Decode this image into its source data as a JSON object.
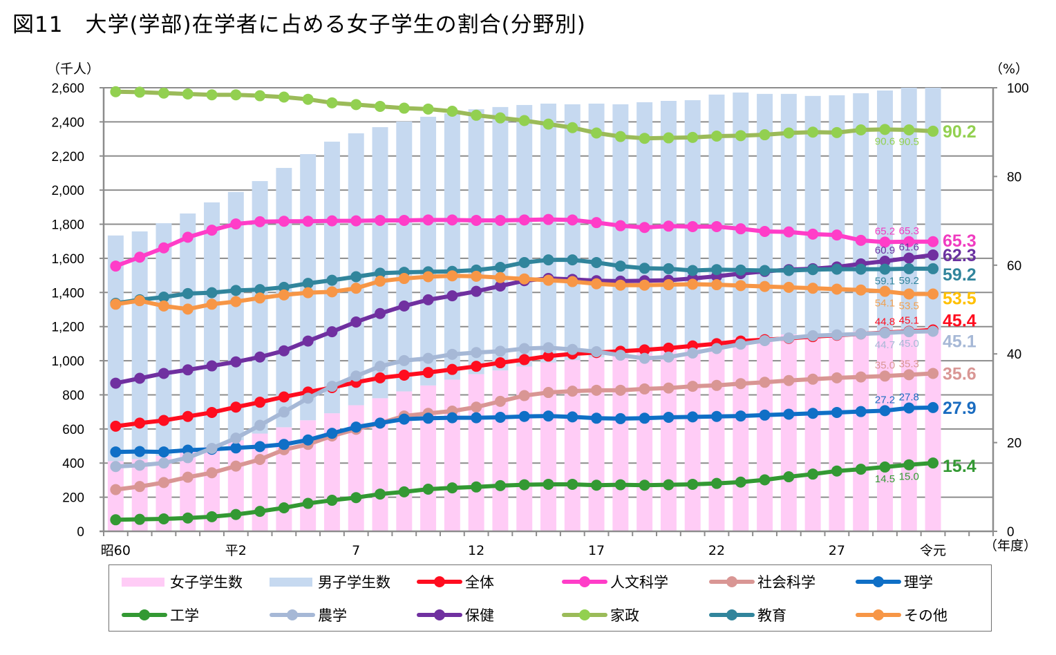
{
  "title": "図11　大学(学部)在学者に占める女子学生の割合(分野別)",
  "chart_data": {
    "type": "bar+line",
    "title": "図11　大学(学部)在学者に占める女子学生の割合(分野別)",
    "left_axis": {
      "unit_label": "（千人）",
      "range": [
        0,
        2600
      ],
      "ticks": [
        "0",
        "200",
        "400",
        "600",
        "800",
        "1,000",
        "1,200",
        "1,400",
        "1,600",
        "1,800",
        "2,000",
        "2,200",
        "2,400",
        "2,600"
      ]
    },
    "right_axis": {
      "unit_label": "（%）",
      "range": [
        0,
        100
      ],
      "ticks": [
        "0",
        "20",
        "40",
        "60",
        "80",
        "100"
      ]
    },
    "x_axis": {
      "unit_label": "（年度）",
      "tick_labels": [
        {
          "index": 0,
          "label": "昭60"
        },
        {
          "index": 5,
          "label": "平2"
        },
        {
          "index": 10,
          "label": "7"
        },
        {
          "index": 15,
          "label": "12"
        },
        {
          "index": 20,
          "label": "17"
        },
        {
          "index": 25,
          "label": "22"
        },
        {
          "index": 30,
          "label": "27"
        },
        {
          "index": 34,
          "label": "令元"
        }
      ],
      "slots": 37
    },
    "categories": [
      "昭60",
      "61",
      "62",
      "63",
      "平元",
      "2",
      "3",
      "4",
      "5",
      "6",
      "7",
      "8",
      "9",
      "10",
      "11",
      "12",
      "13",
      "14",
      "15",
      "16",
      "17",
      "18",
      "19",
      "20",
      "21",
      "22",
      "23",
      "24",
      "25",
      "26",
      "27",
      "28",
      "29",
      "30",
      "令元"
    ],
    "bars": {
      "stacked": true,
      "series": [
        {
          "name": "女子学生数",
          "color": "#ffccf6",
          "values": [
            411,
            423,
            442,
            467,
            494,
            534,
            573,
            610,
            651,
            692,
            739,
            780,
            820,
            855,
            889,
            921,
            943,
            966,
            990,
            1004,
            1019,
            1031,
            1048,
            1070,
            1091,
            1112,
            1136,
            1140,
            1154,
            1155,
            1165,
            1171,
            1158,
            1173,
            1180
          ]
        },
        {
          "name": "男子学生数",
          "color": "#c6d9f0",
          "values": [
            1323,
            1335,
            1364,
            1396,
            1434,
            1455,
            1480,
            1520,
            1560,
            1592,
            1594,
            1589,
            1582,
            1575,
            1561,
            1553,
            1544,
            1533,
            1517,
            1499,
            1488,
            1472,
            1467,
            1453,
            1436,
            1448,
            1436,
            1424,
            1410,
            1397,
            1391,
            1397,
            1426,
            1427,
            1420
          ]
        }
      ]
    },
    "lines": [
      {
        "name": "全体",
        "color": "#ff0d1f",
        "label_color": "#ff0d1f",
        "values": [
          23.7,
          24.4,
          25.0,
          25.9,
          26.8,
          28.0,
          29.1,
          30.3,
          31.4,
          32.4,
          33.6,
          34.6,
          35.2,
          35.8,
          36.5,
          37.2,
          38.0,
          38.7,
          39.5,
          40.0,
          40.3,
          40.6,
          40.9,
          41.3,
          41.8,
          42.3,
          42.9,
          43.2,
          43.5,
          43.9,
          44.2,
          44.5,
          44.8,
          45.1,
          45.4
        ]
      },
      {
        "name": "人文科学",
        "color": "#ff3dc8",
        "label_color": "#f03cc0",
        "values": [
          59.8,
          61.8,
          63.9,
          66.3,
          67.9,
          69.3,
          69.8,
          69.9,
          69.9,
          70.0,
          70.0,
          70.1,
          70.1,
          70.2,
          70.2,
          70.1,
          70.1,
          70.2,
          70.3,
          70.2,
          69.6,
          68.9,
          68.5,
          68.8,
          68.7,
          68.7,
          68.2,
          67.6,
          67.5,
          67.0,
          66.8,
          65.6,
          65.2,
          65.3,
          65.3
        ]
      },
      {
        "name": "社会科学",
        "color": "#d99694",
        "label_color": "#d99694",
        "values": [
          9.4,
          10.1,
          11.0,
          12.2,
          13.2,
          14.7,
          16.2,
          18.4,
          19.6,
          21.5,
          23.0,
          24.4,
          26.0,
          26.6,
          27.1,
          28.0,
          29.3,
          30.6,
          31.3,
          31.6,
          31.8,
          31.8,
          32.1,
          32.3,
          32.7,
          32.9,
          33.3,
          33.6,
          34.0,
          34.3,
          34.6,
          34.8,
          35.0,
          35.3,
          35.6
        ]
      },
      {
        "name": "理学",
        "color": "#0f6fc6",
        "label_color": "#1a6cc0",
        "values": [
          17.9,
          18.0,
          17.9,
          18.3,
          18.5,
          18.8,
          19.1,
          19.6,
          20.6,
          22.1,
          23.5,
          24.4,
          25.3,
          25.5,
          25.6,
          25.6,
          25.7,
          25.9,
          26.0,
          25.8,
          25.5,
          25.4,
          25.5,
          25.7,
          25.8,
          25.9,
          26.0,
          26.2,
          26.4,
          26.6,
          26.8,
          27.0,
          27.2,
          27.8,
          27.9
        ]
      },
      {
        "name": "工学",
        "color": "#339933",
        "label_color": "#339933",
        "values": [
          2.6,
          2.7,
          2.8,
          3.0,
          3.3,
          3.8,
          4.5,
          5.3,
          6.3,
          7.0,
          7.6,
          8.4,
          8.9,
          9.5,
          9.8,
          10.0,
          10.3,
          10.5,
          10.6,
          10.6,
          10.4,
          10.5,
          10.4,
          10.5,
          10.6,
          10.8,
          11.1,
          11.6,
          12.3,
          12.9,
          13.6,
          14.0,
          14.5,
          15.0,
          15.4
        ]
      },
      {
        "name": "農学",
        "color": "#a6b8d6",
        "label_color": "#a6b8d6",
        "values": [
          14.6,
          14.9,
          15.4,
          16.6,
          18.7,
          21.0,
          23.9,
          26.9,
          30.0,
          32.7,
          35.0,
          37.2,
          38.5,
          39.0,
          39.9,
          40.3,
          40.6,
          41.2,
          41.4,
          41.0,
          40.5,
          39.7,
          39.0,
          39.3,
          40.2,
          41.2,
          42.2,
          43.0,
          43.6,
          44.1,
          44.3,
          44.5,
          44.7,
          45.0,
          45.1
        ]
      },
      {
        "name": "保健",
        "color": "#7030a0",
        "label_color": "#6a32a0",
        "values": [
          33.4,
          34.5,
          35.6,
          36.4,
          37.3,
          38.2,
          39.3,
          40.7,
          42.9,
          45.0,
          47.2,
          49.1,
          50.8,
          52.2,
          53.1,
          54.1,
          55.3,
          56.5,
          57.0,
          56.8,
          56.5,
          56.4,
          56.5,
          56.6,
          57.0,
          57.5,
          58.1,
          58.6,
          59.0,
          59.2,
          59.6,
          60.3,
          60.9,
          61.6,
          62.3
        ]
      },
      {
        "name": "家政",
        "color": "#9bbb59",
        "marker_color": "#92d050",
        "label_color": "#92d050",
        "values": [
          99.1,
          99.0,
          98.8,
          98.6,
          98.4,
          98.4,
          98.2,
          97.9,
          97.4,
          96.6,
          96.2,
          95.8,
          95.4,
          95.2,
          94.7,
          93.8,
          93.2,
          92.6,
          91.8,
          91.0,
          89.8,
          89.0,
          88.6,
          88.7,
          88.8,
          89.1,
          89.2,
          89.4,
          89.8,
          90.0,
          89.9,
          90.5,
          90.6,
          90.5,
          90.2
        ]
      },
      {
        "name": "教育",
        "color": "#31859c",
        "label_color": "#31859c",
        "values": [
          51.4,
          52.2,
          52.8,
          53.6,
          53.8,
          54.3,
          54.5,
          55.0,
          55.9,
          56.6,
          57.4,
          58.2,
          58.4,
          58.5,
          58.6,
          58.9,
          59.5,
          60.6,
          61.2,
          61.2,
          60.6,
          59.8,
          59.3,
          59.2,
          58.8,
          59.0,
          58.9,
          58.8,
          58.8,
          59.0,
          59.1,
          59.1,
          59.1,
          59.2,
          59.2
        ]
      },
      {
        "name": "その他",
        "color": "#f79646",
        "label_color": "#f0a050",
        "end_label_color": "#ffc000",
        "values": [
          51.2,
          52.0,
          50.8,
          50.1,
          51.2,
          51.8,
          52.6,
          53.3,
          53.8,
          54.0,
          54.8,
          56.4,
          57.0,
          57.4,
          57.6,
          57.5,
          57.2,
          56.9,
          56.6,
          56.3,
          55.8,
          55.5,
          55.5,
          55.6,
          55.7,
          55.6,
          55.4,
          55.2,
          55.0,
          54.8,
          54.6,
          54.4,
          54.1,
          53.5,
          53.5
        ]
      }
    ],
    "data_labels": [
      {
        "series": "家政",
        "index": 32,
        "text": "90.6",
        "pos": "below"
      },
      {
        "series": "家政",
        "index": 33,
        "text": "90.5",
        "pos": "below"
      },
      {
        "series": "人文科学",
        "index": 32,
        "text": "65.2",
        "pos": "above"
      },
      {
        "series": "人文科学",
        "index": 33,
        "text": "65.3",
        "pos": "above"
      },
      {
        "series": "保健",
        "index": 32,
        "text": "60.9",
        "pos": "above"
      },
      {
        "series": "保健",
        "index": 33,
        "text": "61.6",
        "pos": "above"
      },
      {
        "series": "教育",
        "index": 32,
        "text": "59.1",
        "pos": "below"
      },
      {
        "series": "教育",
        "index": 33,
        "text": "59.2",
        "pos": "below"
      },
      {
        "series": "その他",
        "index": 32,
        "text": "54.1",
        "pos": "below"
      },
      {
        "series": "その他",
        "index": 33,
        "text": "53.5",
        "pos": "below"
      },
      {
        "series": "全体",
        "index": 32,
        "text": "44.8",
        "pos": "above"
      },
      {
        "series": "全体",
        "index": 33,
        "text": "45.1",
        "pos": "above"
      },
      {
        "series": "農学",
        "index": 32,
        "text": "44.7",
        "pos": "below"
      },
      {
        "series": "農学",
        "index": 33,
        "text": "45.0",
        "pos": "below"
      },
      {
        "series": "社会科学",
        "index": 32,
        "text": "35.0",
        "pos": "above"
      },
      {
        "series": "社会科学",
        "index": 33,
        "text": "35.3",
        "pos": "above"
      },
      {
        "series": "理学",
        "index": 32,
        "text": "27.2",
        "pos": "above"
      },
      {
        "series": "理学",
        "index": 33,
        "text": "27.8",
        "pos": "above"
      },
      {
        "series": "工学",
        "index": 32,
        "text": "14.5",
        "pos": "below"
      },
      {
        "series": "工学",
        "index": 33,
        "text": "15.0",
        "pos": "below"
      }
    ],
    "end_labels": [
      {
        "series": "家政",
        "text": "90.2",
        "color": "#92d050"
      },
      {
        "series": "人文科学",
        "text": "65.3",
        "color": "#f03cc0"
      },
      {
        "series": "保健",
        "text": "62.3",
        "color": "#6a32a0"
      },
      {
        "series": "教育",
        "text": "59.2",
        "color": "#31859c"
      },
      {
        "series": "その他",
        "text": "53.5",
        "color": "#ffc000"
      },
      {
        "series": "全体",
        "text": "45.4",
        "color": "#ff0d1f"
      },
      {
        "series": "農学",
        "text": "45.1",
        "color": "#a6b8d6"
      },
      {
        "series": "社会科学",
        "text": "35.6",
        "color": "#d99694"
      },
      {
        "series": "理学",
        "text": "27.9",
        "color": "#1a6cc0"
      },
      {
        "series": "工学",
        "text": "15.4",
        "color": "#339933"
      }
    ],
    "legend": {
      "placement": "bottom",
      "items": [
        {
          "name": "女子学生数",
          "kind": "bar",
          "color": "#ffccf6"
        },
        {
          "name": "男子学生数",
          "kind": "bar",
          "color": "#c6d9f0"
        },
        {
          "name": "全体",
          "kind": "line",
          "color": "#ff0d1f"
        },
        {
          "name": "人文科学",
          "kind": "line",
          "color": "#ff3dc8"
        },
        {
          "name": "社会科学",
          "kind": "line",
          "color": "#d99694"
        },
        {
          "name": "理学",
          "kind": "line",
          "color": "#0f6fc6"
        },
        {
          "name": "工学",
          "kind": "line",
          "color": "#339933"
        },
        {
          "name": "農学",
          "kind": "line",
          "color": "#a6b8d6"
        },
        {
          "name": "保健",
          "kind": "line",
          "color": "#7030a0"
        },
        {
          "name": "家政",
          "kind": "line",
          "color": "#9bbb59",
          "marker_color": "#92d050"
        },
        {
          "name": "教育",
          "kind": "line",
          "color": "#31859c"
        },
        {
          "name": "その他",
          "kind": "line",
          "color": "#f79646"
        }
      ]
    },
    "grid": true
  }
}
